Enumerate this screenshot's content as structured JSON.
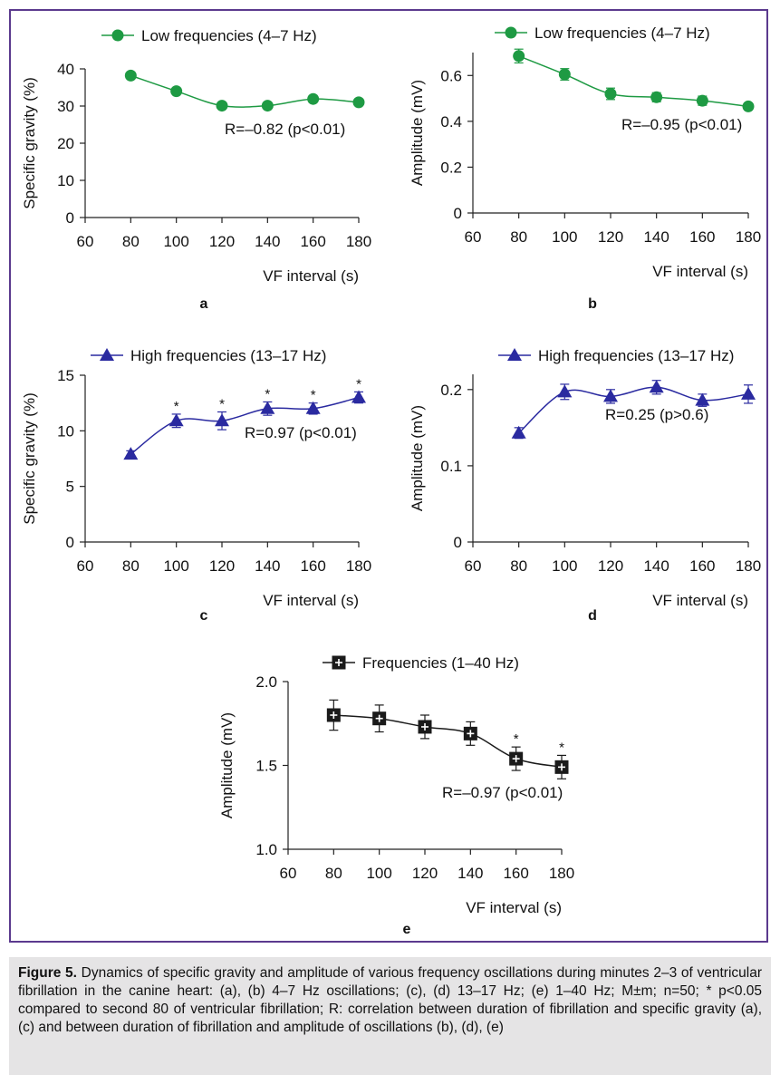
{
  "caption": {
    "label": "Figure 5.",
    "text": " Dynamics of specific gravity and amplitude of various frequency oscillations during minutes 2–3 of ventricular fibrillation in the canine heart: (a), (b) 4–7 Hz oscillations; (c), (d) 13–17 Hz; (e) 1–40 Hz; M±m; n=50; * p<0.05 compared to second 80 of ventricular fibrillation; R: correlation between duration of fibrillation and specific gravity (a), (c) and between duration of fibrillation and amplitude of oscillations (b), (d), (e)"
  },
  "colors": {
    "green": "#1e9a43",
    "blue": "#2a2aa0",
    "black": "#1a1a1a",
    "frame": "#5b3a8e"
  },
  "chart_data": [
    {
      "id": "a",
      "panel_label": "a",
      "type": "line",
      "marker": "circle",
      "color": "#1e9a43",
      "legend": "Low frequencies (4–7 Hz)",
      "ylabel": "Specific gravity (%)",
      "xlabel": "VF interval (s)",
      "xlim": [
        60,
        180
      ],
      "ylim": [
        0,
        40
      ],
      "xticks": [
        "60",
        "80",
        "100",
        "120",
        "140",
        "160",
        "180"
      ],
      "yticks": [
        "0",
        "10",
        "20",
        "30",
        "40"
      ],
      "x": [
        80,
        100,
        120,
        140,
        160,
        180
      ],
      "y": [
        38.2,
        34.0,
        30.1,
        30.1,
        31.9,
        31.0
      ],
      "err": [
        0,
        0,
        0,
        0,
        0,
        0
      ],
      "stars": [
        false,
        false,
        false,
        false,
        false,
        false
      ],
      "annotation": "R=–0.82 (p<0.01)"
    },
    {
      "id": "b",
      "panel_label": "b",
      "type": "line",
      "marker": "circle",
      "color": "#1e9a43",
      "legend": "Low frequencies (4–7 Hz)",
      "ylabel": "Amplitude (mV)",
      "xlabel": "VF interval (s)",
      "xlim": [
        60,
        180
      ],
      "ylim": [
        0,
        0.7
      ],
      "xticks": [
        "60",
        "80",
        "100",
        "120",
        "140",
        "160",
        "180"
      ],
      "yticks": [
        "0",
        "0.2",
        "0.4",
        "0.6"
      ],
      "x": [
        80,
        100,
        120,
        140,
        160,
        180
      ],
      "y": [
        0.685,
        0.605,
        0.52,
        0.505,
        0.49,
        0.465
      ],
      "err": [
        0.03,
        0.025,
        0.025,
        0.02,
        0.02,
        0.015
      ],
      "stars": [
        false,
        false,
        false,
        false,
        false,
        false
      ],
      "annotation": "R=–0.95 (p<0.01)"
    },
    {
      "id": "c",
      "panel_label": "c",
      "type": "line",
      "marker": "triangle",
      "color": "#2a2aa0",
      "legend": "High frequencies (13–17 Hz)",
      "ylabel": "Specific gravity (%)",
      "xlabel": "VF interval (s)",
      "xlim": [
        60,
        180
      ],
      "ylim": [
        0,
        15
      ],
      "xticks": [
        "60",
        "80",
        "100",
        "120",
        "140",
        "160",
        "180"
      ],
      "yticks": [
        "0",
        "5",
        "10",
        "15"
      ],
      "x": [
        80,
        100,
        120,
        140,
        160,
        180
      ],
      "y": [
        7.9,
        10.9,
        10.9,
        12.0,
        12.0,
        13.0
      ],
      "err": [
        0.3,
        0.6,
        0.8,
        0.6,
        0.5,
        0.5
      ],
      "stars": [
        false,
        true,
        true,
        true,
        true,
        true
      ],
      "annotation": "R=0.97 (p<0.01)"
    },
    {
      "id": "d",
      "panel_label": "d",
      "type": "line",
      "marker": "triangle",
      "color": "#2a2aa0",
      "legend": "High frequencies (13–17 Hz)",
      "ylabel": "Amplitude (mV)",
      "xlabel": "VF interval (s)",
      "xlim": [
        60,
        180
      ],
      "ylim": [
        0,
        0.22
      ],
      "xticks": [
        "60",
        "80",
        "100",
        "120",
        "140",
        "160",
        "180"
      ],
      "yticks": [
        "0",
        "0.1",
        "0.2"
      ],
      "x": [
        80,
        100,
        120,
        140,
        160,
        180
      ],
      "y": [
        0.143,
        0.197,
        0.191,
        0.203,
        0.186,
        0.194
      ],
      "err": [
        0.007,
        0.01,
        0.009,
        0.009,
        0.008,
        0.012
      ],
      "stars": [
        false,
        false,
        false,
        false,
        false,
        false
      ],
      "annotation": "R=0.25 (p>0.6)"
    },
    {
      "id": "e",
      "panel_label": "e",
      "type": "line",
      "marker": "square",
      "color": "#1a1a1a",
      "legend": "Frequencies (1–40 Hz)",
      "ylabel": "Amplitude (mV)",
      "xlabel": "VF interval (s)",
      "xlim": [
        60,
        180
      ],
      "ylim": [
        1.0,
        2.0
      ],
      "xticks": [
        "60",
        "80",
        "100",
        "120",
        "140",
        "160",
        "180"
      ],
      "yticks": [
        "1.0",
        "1.5",
        "2.0"
      ],
      "x": [
        80,
        100,
        120,
        140,
        160,
        180
      ],
      "y": [
        1.8,
        1.78,
        1.73,
        1.69,
        1.54,
        1.49
      ],
      "err": [
        0.09,
        0.08,
        0.07,
        0.07,
        0.07,
        0.07
      ],
      "stars": [
        false,
        false,
        false,
        false,
        true,
        true
      ],
      "annotation": "R=–0.97 (p<0.01)"
    }
  ]
}
